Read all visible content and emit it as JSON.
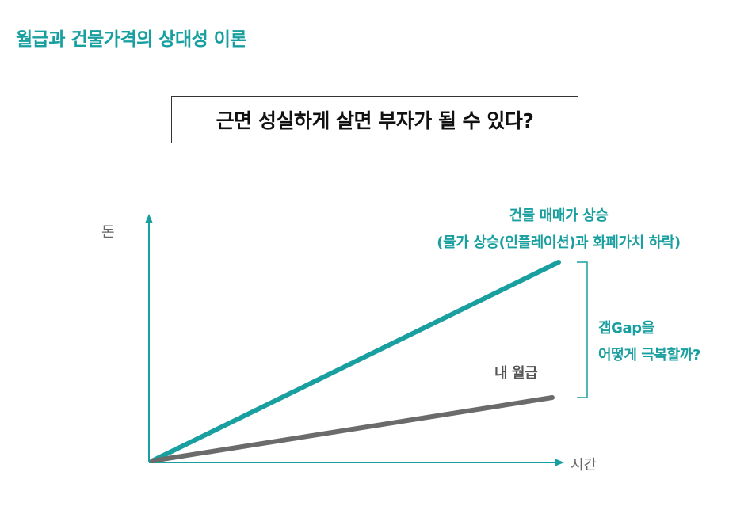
{
  "title": "월급과 건물가격의 상대성 이론",
  "question": "근면 성실하게 살면 부자가 될 수 있다?",
  "diagram": {
    "y_axis_label": "돈",
    "x_axis_label": "시간",
    "building_label_line1": "건물 매매가 상승",
    "building_label_line2": "(물가 상승(인플레이션)과 화폐가치 하락)",
    "salary_label": "내 월급",
    "gap_label_line1": "갭Gap을",
    "gap_label_line2": "어떻게 극복할까?",
    "colors": {
      "accent": "#1a9fa0",
      "salary_line": "#6b6b6b",
      "axis": "#1a9fa0"
    }
  }
}
